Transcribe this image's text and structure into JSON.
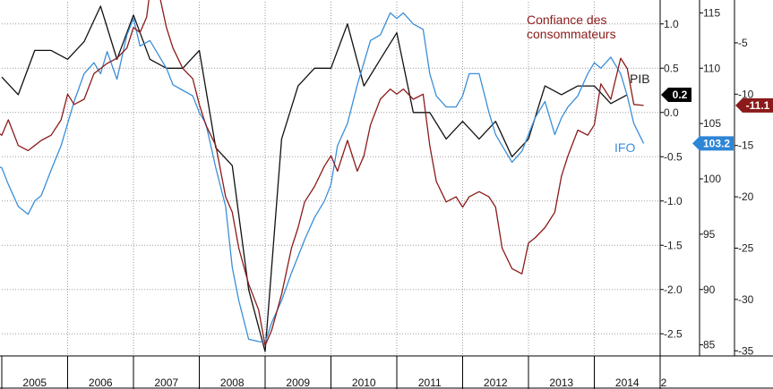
{
  "chart_data": {
    "type": "line",
    "title": "",
    "x_ticks": [
      "2005",
      "2006",
      "2007",
      "2008",
      "2009",
      "2010",
      "2011",
      "2012",
      "2013",
      "2014",
      "2"
    ],
    "xlim": [
      2005,
      2015
    ],
    "axes": {
      "pib": {
        "ylim": [
          -2.75,
          1.25
        ],
        "ticks": [
          "1.0",
          "0.5",
          "0.0",
          "-0.5",
          "-1.0",
          "-1.5",
          "-2.0",
          "-2.5"
        ]
      },
      "ifo": {
        "ylim": [
          84,
          116
        ],
        "ticks": [
          "115",
          "110",
          "105",
          "100",
          "95",
          "90",
          "85"
        ]
      },
      "conf": {
        "ylim": [
          -35.5,
          -1
        ],
        "ticks": [
          "-5",
          "-10",
          "-15",
          "-20",
          "-25",
          "-30",
          "-35"
        ]
      }
    },
    "grid": true,
    "series": [
      {
        "name": "PIB",
        "axis": "pib",
        "color": "#111111",
        "label": "PIB",
        "last_value": "0.2",
        "flag_color": "#000000",
        "points": [
          [
            2005.0,
            0.4
          ],
          [
            2005.25,
            0.2
          ],
          [
            2005.5,
            0.7
          ],
          [
            2005.75,
            0.7
          ],
          [
            2006.0,
            0.6
          ],
          [
            2006.25,
            0.8
          ],
          [
            2006.5,
            1.2
          ],
          [
            2006.75,
            0.6
          ],
          [
            2007.0,
            1.1
          ],
          [
            2007.25,
            0.6
          ],
          [
            2007.5,
            0.5
          ],
          [
            2007.75,
            0.5
          ],
          [
            2008.0,
            0.7
          ],
          [
            2008.25,
            -0.4
          ],
          [
            2008.5,
            -0.6
          ],
          [
            2008.75,
            -2.0
          ],
          [
            2009.0,
            -2.7
          ],
          [
            2009.25,
            -0.3
          ],
          [
            2009.5,
            0.3
          ],
          [
            2009.75,
            0.5
          ],
          [
            2010.0,
            0.5
          ],
          [
            2010.25,
            1.0
          ],
          [
            2010.5,
            0.3
          ],
          [
            2010.75,
            0.6
          ],
          [
            2011.0,
            0.9
          ],
          [
            2011.25,
            0.0
          ],
          [
            2011.5,
            0.0
          ],
          [
            2011.75,
            -0.3
          ],
          [
            2012.0,
            -0.1
          ],
          [
            2012.25,
            -0.3
          ],
          [
            2012.5,
            -0.1
          ],
          [
            2012.75,
            -0.5
          ],
          [
            2013.0,
            -0.3
          ],
          [
            2013.25,
            0.3
          ],
          [
            2013.5,
            0.2
          ],
          [
            2013.75,
            0.3
          ],
          [
            2014.0,
            0.3
          ],
          [
            2014.25,
            0.1
          ],
          [
            2014.5,
            0.2
          ]
        ]
      },
      {
        "name": "IFO",
        "axis": "ifo",
        "color": "#3a8fd9",
        "label": "IFO",
        "last_value": "103.2",
        "flag_color": "#2d85d6",
        "points": [
          [
            2004.75,
            101.5
          ],
          [
            2005.0,
            101.0
          ],
          [
            2005.1,
            99.5
          ],
          [
            2005.25,
            97.5
          ],
          [
            2005.4,
            96.8
          ],
          [
            2005.5,
            98.0
          ],
          [
            2005.6,
            98.5
          ],
          [
            2005.75,
            100.8
          ],
          [
            2005.9,
            103.0
          ],
          [
            2006.0,
            105.0
          ],
          [
            2006.1,
            107.0
          ],
          [
            2006.25,
            109.5
          ],
          [
            2006.4,
            110.5
          ],
          [
            2006.5,
            109.5
          ],
          [
            2006.6,
            111.5
          ],
          [
            2006.75,
            109.0
          ],
          [
            2006.9,
            113.0
          ],
          [
            2007.0,
            114.5
          ],
          [
            2007.1,
            112.0
          ],
          [
            2007.25,
            112.5
          ],
          [
            2007.4,
            111.0
          ],
          [
            2007.5,
            110.0
          ],
          [
            2007.6,
            108.5
          ],
          [
            2007.75,
            108.0
          ],
          [
            2007.9,
            107.5
          ],
          [
            2008.0,
            106.0
          ],
          [
            2008.1,
            105.0
          ],
          [
            2008.25,
            101.0
          ],
          [
            2008.4,
            97.5
          ],
          [
            2008.5,
            92.0
          ],
          [
            2008.6,
            89.0
          ],
          [
            2008.75,
            85.5
          ],
          [
            2008.9,
            85.3
          ],
          [
            2009.0,
            85.2
          ],
          [
            2009.1,
            87.0
          ],
          [
            2009.25,
            89.0
          ],
          [
            2009.4,
            91.5
          ],
          [
            2009.5,
            93.0
          ],
          [
            2009.6,
            94.5
          ],
          [
            2009.75,
            96.5
          ],
          [
            2009.9,
            98.0
          ],
          [
            2010.0,
            99.5
          ],
          [
            2010.1,
            103.0
          ],
          [
            2010.25,
            105.0
          ],
          [
            2010.4,
            108.5
          ],
          [
            2010.5,
            110.5
          ],
          [
            2010.6,
            112.5
          ],
          [
            2010.75,
            113.0
          ],
          [
            2010.9,
            115.0
          ],
          [
            2011.0,
            114.5
          ],
          [
            2011.1,
            115.0
          ],
          [
            2011.25,
            114.0
          ],
          [
            2011.4,
            113.5
          ],
          [
            2011.5,
            109.5
          ],
          [
            2011.6,
            107.5
          ],
          [
            2011.75,
            106.5
          ],
          [
            2011.9,
            106.5
          ],
          [
            2012.0,
            107.5
          ],
          [
            2012.1,
            109.5
          ],
          [
            2012.25,
            109.5
          ],
          [
            2012.4,
            106.0
          ],
          [
            2012.5,
            104.0
          ],
          [
            2012.6,
            103.0
          ],
          [
            2012.75,
            101.5
          ],
          [
            2012.9,
            102.5
          ],
          [
            2013.0,
            104.0
          ],
          [
            2013.1,
            105.5
          ],
          [
            2013.25,
            107.0
          ],
          [
            2013.4,
            104.0
          ],
          [
            2013.5,
            105.5
          ],
          [
            2013.6,
            106.5
          ],
          [
            2013.75,
            107.5
          ],
          [
            2013.9,
            109.5
          ],
          [
            2014.0,
            110.5
          ],
          [
            2014.1,
            110.0
          ],
          [
            2014.25,
            111.0
          ],
          [
            2014.4,
            109.5
          ],
          [
            2014.5,
            107.5
          ],
          [
            2014.6,
            105.0
          ],
          [
            2014.75,
            103.2
          ]
        ]
      },
      {
        "name": "Confiance des consommateurs",
        "axis": "conf",
        "color": "#8b1a1a",
        "label": [
          "Confiance des",
          "consommateurs"
        ],
        "last_value": "-11.1",
        "flag_color": "#8b1a1a",
        "points": [
          [
            2004.75,
            -13.0
          ],
          [
            2005.0,
            -14.0
          ],
          [
            2005.1,
            -12.5
          ],
          [
            2005.25,
            -15.0
          ],
          [
            2005.4,
            -15.5
          ],
          [
            2005.5,
            -15.0
          ],
          [
            2005.6,
            -14.5
          ],
          [
            2005.75,
            -14.0
          ],
          [
            2005.9,
            -12.5
          ],
          [
            2006.0,
            -10.0
          ],
          [
            2006.1,
            -11.0
          ],
          [
            2006.25,
            -10.5
          ],
          [
            2006.4,
            -8.0
          ],
          [
            2006.5,
            -7.5
          ],
          [
            2006.6,
            -7.0
          ],
          [
            2006.75,
            -6.5
          ],
          [
            2006.9,
            -5.5
          ],
          [
            2007.0,
            -3.5
          ],
          [
            2007.1,
            -4.0
          ],
          [
            2007.2,
            -2.5
          ],
          [
            2007.25,
            0.0
          ],
          [
            2007.4,
            -0.5
          ],
          [
            2007.5,
            -3.5
          ],
          [
            2007.6,
            -5.5
          ],
          [
            2007.75,
            -7.5
          ],
          [
            2007.9,
            -8.5
          ],
          [
            2008.0,
            -11.0
          ],
          [
            2008.1,
            -13.0
          ],
          [
            2008.25,
            -15.0
          ],
          [
            2008.4,
            -20.0
          ],
          [
            2008.5,
            -21.5
          ],
          [
            2008.6,
            -25.0
          ],
          [
            2008.75,
            -28.5
          ],
          [
            2008.9,
            -31.0
          ],
          [
            2009.0,
            -34.5
          ],
          [
            2009.1,
            -33.0
          ],
          [
            2009.25,
            -29.5
          ],
          [
            2009.4,
            -25.0
          ],
          [
            2009.5,
            -23.0
          ],
          [
            2009.6,
            -20.5
          ],
          [
            2009.75,
            -19.0
          ],
          [
            2009.9,
            -17.0
          ],
          [
            2010.0,
            -16.0
          ],
          [
            2010.1,
            -17.5
          ],
          [
            2010.25,
            -14.5
          ],
          [
            2010.4,
            -17.5
          ],
          [
            2010.5,
            -16.0
          ],
          [
            2010.6,
            -13.0
          ],
          [
            2010.75,
            -10.5
          ],
          [
            2010.9,
            -9.5
          ],
          [
            2011.0,
            -10.0
          ],
          [
            2011.1,
            -9.5
          ],
          [
            2011.25,
            -10.5
          ],
          [
            2011.4,
            -10.0
          ],
          [
            2011.5,
            -15.0
          ],
          [
            2011.6,
            -18.5
          ],
          [
            2011.75,
            -20.5
          ],
          [
            2011.9,
            -20.0
          ],
          [
            2012.0,
            -21.0
          ],
          [
            2012.1,
            -20.0
          ],
          [
            2012.25,
            -19.5
          ],
          [
            2012.4,
            -20.0
          ],
          [
            2012.5,
            -21.0
          ],
          [
            2012.6,
            -25.0
          ],
          [
            2012.75,
            -27.0
          ],
          [
            2012.9,
            -27.5
          ],
          [
            2013.0,
            -24.5
          ],
          [
            2013.1,
            -24.0
          ],
          [
            2013.25,
            -23.0
          ],
          [
            2013.4,
            -21.5
          ],
          [
            2013.5,
            -18.0
          ],
          [
            2013.6,
            -16.0
          ],
          [
            2013.75,
            -13.5
          ],
          [
            2013.9,
            -14.0
          ],
          [
            2014.0,
            -13.0
          ],
          [
            2014.1,
            -9.0
          ],
          [
            2014.25,
            -10.5
          ],
          [
            2014.4,
            -6.5
          ],
          [
            2014.5,
            -7.5
          ],
          [
            2014.6,
            -11.0
          ],
          [
            2014.75,
            -11.1
          ]
        ]
      }
    ]
  }
}
